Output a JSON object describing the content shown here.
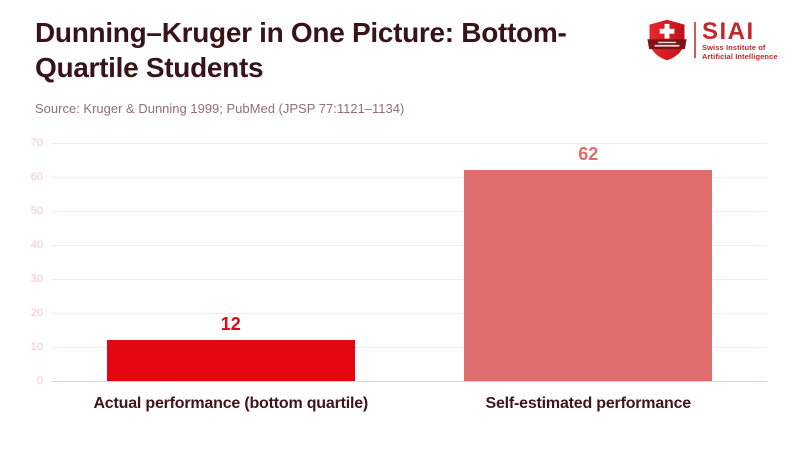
{
  "header": {
    "title_line1": "Dunning–Kruger in One Picture: Bottom-",
    "title_line2": "Quartile Students",
    "source": "Source: Kruger & Dunning 1999; PubMed (JPSP 77:1121–1134)"
  },
  "logo": {
    "acronym": "SIAI",
    "name_line1": "Swiss Institute of",
    "name_line2": "Artificial Intelligence",
    "brand_color": "#c1272d"
  },
  "chart_data": {
    "type": "bar",
    "title": "Dunning–Kruger in One Picture: Bottom-Quartile Students",
    "categories": [
      "Actual performance (bottom quartile)",
      "Self-estimated performance"
    ],
    "values": [
      12,
      62
    ],
    "bar_colors": [
      "#e40613",
      "#df6d6d"
    ],
    "value_label_colors": [
      "#e40613",
      "#df6d6d"
    ],
    "xlabel": "",
    "ylabel": "",
    "ylim": [
      0,
      70
    ],
    "yticks": [
      0,
      10,
      20,
      30,
      40,
      50,
      60,
      70
    ],
    "grid": "horizontal",
    "legend": "none"
  },
  "colors": {
    "title": "#381419",
    "source": "#966e70",
    "axis_label": "#41141a",
    "tick_label": "#f4c8ca",
    "gridline": "#fce8e9",
    "axis_line": "#d8d2d3",
    "background": "#ffffff"
  }
}
